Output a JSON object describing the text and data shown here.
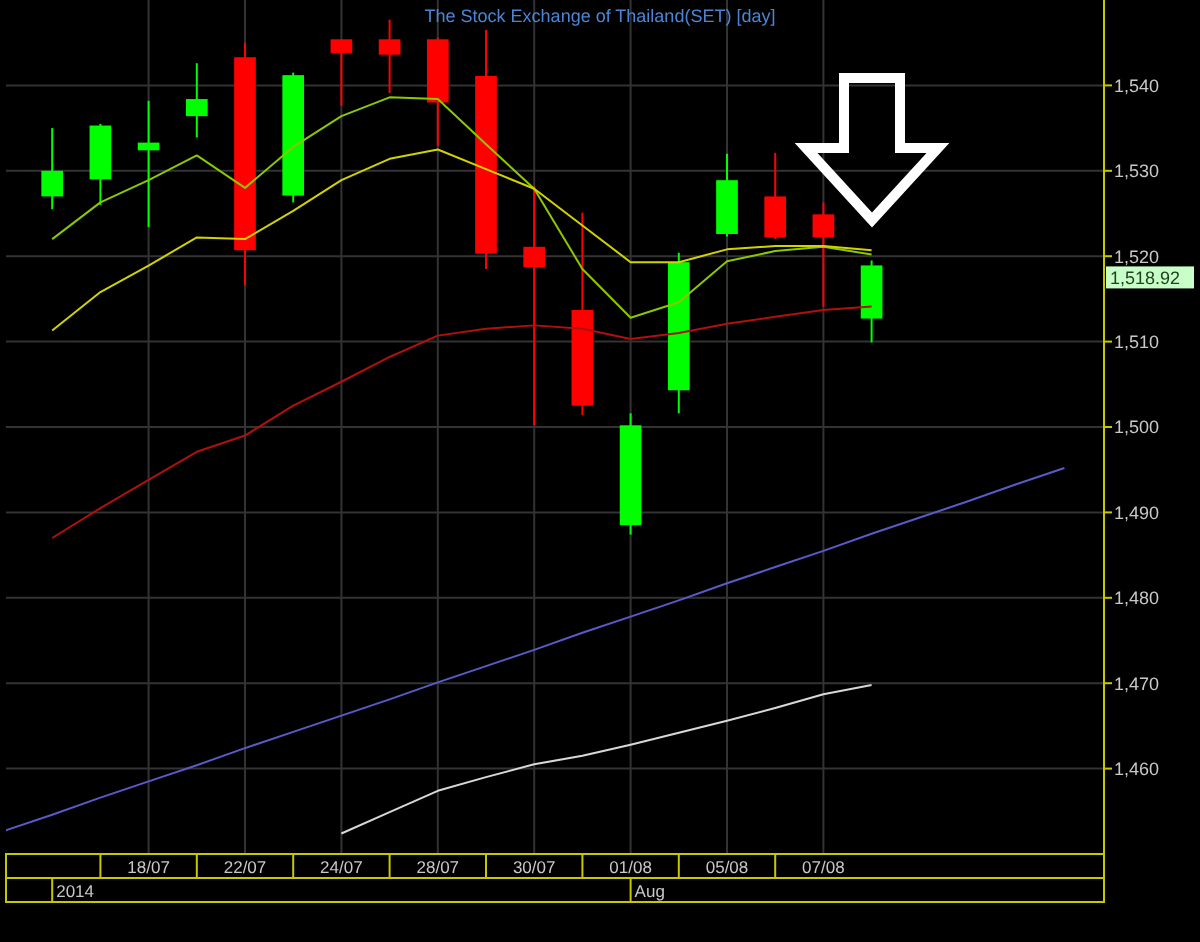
{
  "chart_data": {
    "type": "candlestick",
    "title": "The Stock Exchange of Thailand(SET) [day]",
    "categories": [
      null,
      null,
      null,
      "18/07",
      null,
      "22/07",
      null,
      "24/07",
      null,
      "28/07",
      null,
      "30/07",
      null,
      "01/08",
      null,
      "05/08",
      null,
      "07/08",
      null,
      null,
      null,
      null,
      null
    ],
    "ohlc": [
      null,
      [
        1527,
        1535,
        1525.5,
        1530
      ],
      [
        1529,
        1535.5,
        1526,
        1535.3
      ],
      [
        1532.4,
        1538.2,
        1523.4,
        1533.3
      ],
      [
        1536.4,
        1542.6,
        1533.9,
        1538.4
      ],
      [
        1543.3,
        1545,
        1516.6,
        1520.7
      ],
      [
        1527.1,
        1541.5,
        1526.3,
        1541.2
      ],
      [
        1545.4,
        1545.4,
        1537.6,
        1543.8
      ],
      [
        1545.4,
        1547.7,
        1539.1,
        1543.6
      ],
      [
        1545.4,
        1545.6,
        1532.9,
        1538
      ],
      [
        1541.1,
        1546.5,
        1518.5,
        1520.3
      ],
      [
        1521.1,
        1528.2,
        1500.2,
        1518.7
      ],
      [
        1513.7,
        1525.1,
        1501.4,
        1502.5
      ],
      [
        1488.5,
        1501.6,
        1487.4,
        1500.2
      ],
      [
        1504.3,
        1520.4,
        1501.6,
        1519.3
      ],
      [
        1522.6,
        1532,
        1522.3,
        1528.9
      ],
      [
        1527,
        1532.1,
        1522,
        1522.2
      ],
      [
        1524.9,
        1526.3,
        1514.1,
        1522.2
      ],
      [
        1512.7,
        1519.5,
        1509.9,
        1518.92
      ],
      null,
      null,
      null,
      null
    ],
    "colors": [
      null,
      "#00ff00",
      "#00ff00",
      "#00ff00",
      "#00ff00",
      "#ff0000",
      "#00ff00",
      "#ff0000",
      "#ff0000",
      "#ff0000",
      "#ff0000",
      "#ff0000",
      "#ff0000",
      "#00ff00",
      "#00ff00",
      "#00ff00",
      "#ff0000",
      "#ff0000",
      "#00ff00",
      null,
      null,
      null,
      null
    ],
    "series": [
      {
        "type": "line",
        "color": "#8cc800",
        "values": [
          null,
          1522,
          1526.3,
          1528.9,
          1531.8,
          1528,
          1532.8,
          1536.4,
          1538.6,
          1538.4,
          1533.1,
          1527.9,
          1518.5,
          1512.8,
          1514.6,
          1519.4,
          1520.6,
          1521.1,
          1520.2,
          null,
          null,
          null,
          null
        ]
      },
      {
        "type": "line",
        "color": "#d2d200",
        "values": [
          null,
          1511.3,
          1515.8,
          1518.9,
          1522.2,
          1522,
          1525.3,
          1528.9,
          1531.4,
          1532.5,
          1530.2,
          1527.9,
          1523.6,
          1519.3,
          1519.3,
          1520.8,
          1521.2,
          1521.2,
          1520.7,
          null,
          null,
          null,
          null
        ]
      },
      {
        "type": "line",
        "color": "#b01010",
        "values": [
          null,
          1487,
          1490.5,
          1493.8,
          1497.1,
          1499,
          1502.5,
          1505.3,
          1508.2,
          1510.7,
          1511.5,
          1511.9,
          1511.5,
          1510.3,
          1511,
          1512.1,
          1512.9,
          1513.7,
          1514.1,
          null,
          null,
          null,
          null
        ]
      },
      {
        "type": "line",
        "color": "#5a5ac8",
        "values": [
          1452.7,
          1454.6,
          1456.6,
          1458.5,
          1460.4,
          1462.4,
          1464.3,
          1466.2,
          1468.1,
          1470.1,
          1472,
          1473.9,
          1475.9,
          1477.8,
          1479.7,
          1481.7,
          1483.6,
          1485.5,
          1487.5,
          1489.4,
          1491.3,
          1493.3,
          1495.2
        ]
      },
      {
        "type": "line",
        "color": "#d8d8d8",
        "values": [
          null,
          null,
          null,
          null,
          null,
          null,
          null,
          1452.4,
          1454.9,
          1457.4,
          1459,
          1460.5,
          1461.5,
          1462.8,
          1464.2,
          1465.6,
          1467.1,
          1468.7,
          1469.8,
          null,
          null,
          null,
          null
        ]
      }
    ],
    "ylim": [
      1450,
      1550
    ],
    "yticks": [
      {
        "value": 1460,
        "label": "1,460"
      },
      {
        "value": 1470,
        "label": "1,470"
      },
      {
        "value": 1480,
        "label": "1,480"
      },
      {
        "value": 1490,
        "label": "1,490"
      },
      {
        "value": 1500,
        "label": "1,500"
      },
      {
        "value": 1510,
        "label": "1,510"
      },
      {
        "value": 1520,
        "label": "1,520"
      },
      {
        "value": 1530,
        "label": "1,530"
      },
      {
        "value": 1540,
        "label": "1,540"
      }
    ],
    "annotations": [
      "2014",
      "Aug",
      "1,518.92"
    ],
    "grid": true
  }
}
